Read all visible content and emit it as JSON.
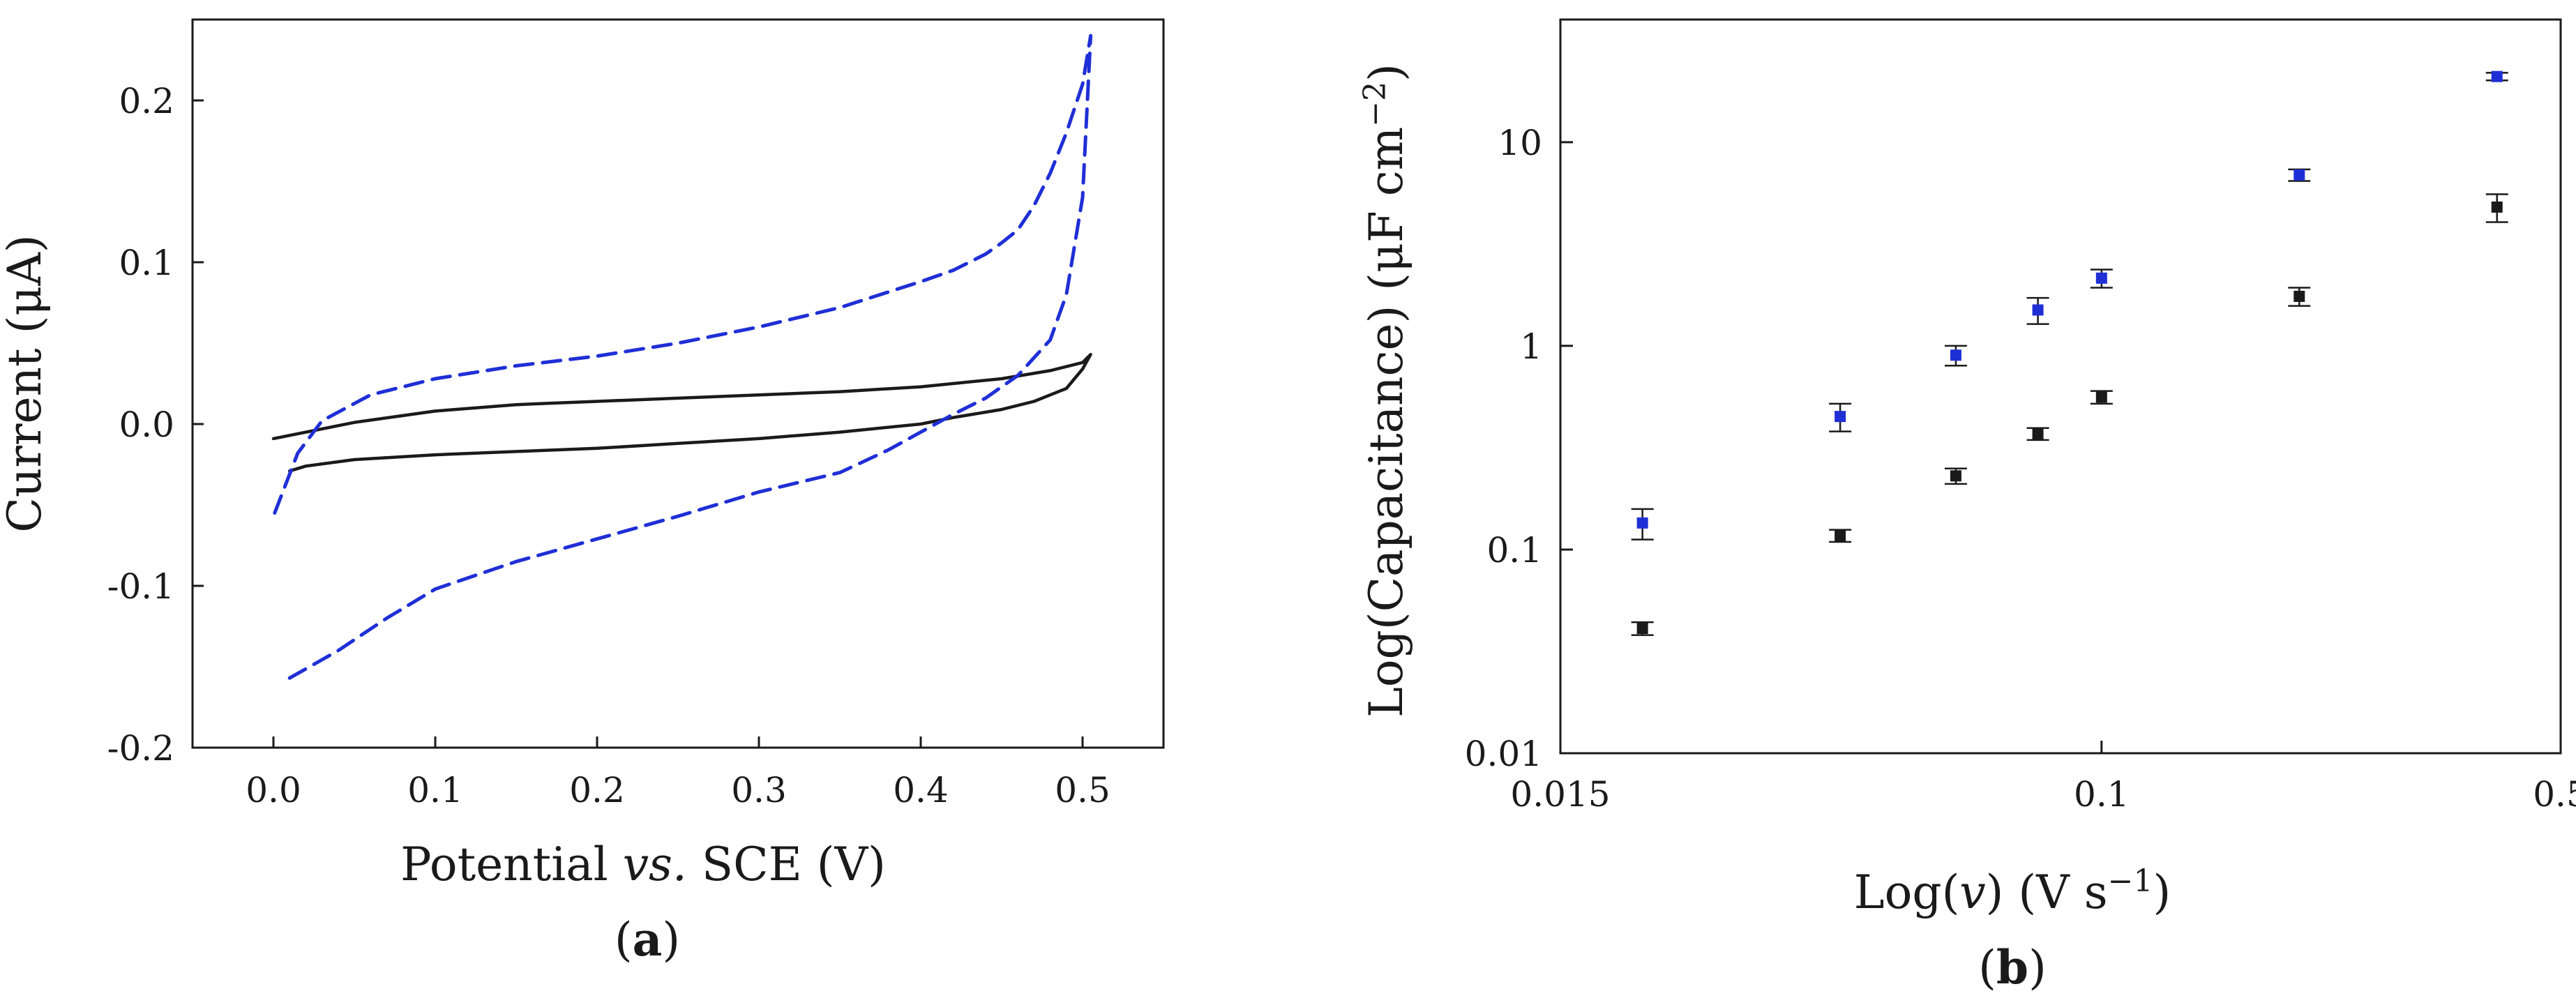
{
  "chart_data": [
    {
      "panel": "a",
      "type": "line",
      "caption": "a",
      "xlabel_prefix": "Potential ",
      "xlabel_italic": "vs.",
      "xlabel_suffix": " SCE (V)",
      "ylabel": "Current (μA)",
      "xlim": [
        -0.05,
        0.55
      ],
      "ylim": [
        -0.2,
        0.25
      ],
      "xticks": [
        0.0,
        0.1,
        0.2,
        0.3,
        0.4,
        0.5
      ],
      "xtick_labels": [
        "0.0",
        "0.1",
        "0.2",
        "0.3",
        "0.4",
        "0.5"
      ],
      "yticks": [
        -0.2,
        -0.1,
        0.0,
        0.1,
        0.2
      ],
      "ytick_labels": [
        "-0.2",
        "-0.1",
        "0.0",
        "0.1",
        "0.2"
      ],
      "series": [
        {
          "name": "solid-black",
          "color": "#1a1a1a",
          "dash": "solid",
          "x": [
            0.0,
            0.05,
            0.1,
            0.15,
            0.2,
            0.25,
            0.3,
            0.35,
            0.4,
            0.45,
            0.48,
            0.5,
            0.505,
            0.5,
            0.49,
            0.47,
            0.45,
            0.42,
            0.4,
            0.35,
            0.3,
            0.25,
            0.2,
            0.15,
            0.1,
            0.05,
            0.02,
            0.01
          ],
          "y": [
            -0.009,
            0.001,
            0.008,
            0.012,
            0.014,
            0.016,
            0.018,
            0.02,
            0.023,
            0.028,
            0.033,
            0.038,
            0.043,
            0.034,
            0.022,
            0.014,
            0.009,
            0.004,
            0.0,
            -0.005,
            -0.009,
            -0.012,
            -0.015,
            -0.017,
            -0.019,
            -0.022,
            -0.026,
            -0.029
          ]
        },
        {
          "name": "dashed-blue",
          "color": "#1f2fd6",
          "dash": "dashed",
          "x": [
            0.01,
            0.04,
            0.07,
            0.1,
            0.15,
            0.2,
            0.25,
            0.3,
            0.35,
            0.38,
            0.4,
            0.42,
            0.44,
            0.46,
            0.48,
            0.49,
            0.5,
            0.505,
            0.5,
            0.49,
            0.48,
            0.47,
            0.46,
            0.45,
            0.44,
            0.43,
            0.42,
            0.4,
            0.35,
            0.3,
            0.25,
            0.2,
            0.15,
            0.1,
            0.06,
            0.03,
            0.015,
            0.0
          ],
          "y": [
            -0.157,
            -0.14,
            -0.12,
            -0.102,
            -0.085,
            -0.071,
            -0.057,
            -0.042,
            -0.03,
            -0.016,
            -0.005,
            0.006,
            0.016,
            0.03,
            0.052,
            0.08,
            0.14,
            0.24,
            0.21,
            0.18,
            0.155,
            0.135,
            0.12,
            0.112,
            0.105,
            0.1,
            0.095,
            0.088,
            0.072,
            0.06,
            0.05,
            0.042,
            0.036,
            0.028,
            0.018,
            0.002,
            -0.018,
            -0.057
          ]
        }
      ]
    },
    {
      "panel": "b",
      "type": "scatter",
      "caption": "b",
      "xlabel_prefix": "Log(",
      "xlabel_italic": "v",
      "xlabel_suffix": ") (V s",
      "xlabel_sup": "−1",
      "xlabel_end": ")",
      "ylabel_main": "Log(Capacitance) (μF cm",
      "ylabel_sup": "−2",
      "ylabel_end": ")",
      "x_scale": "log",
      "y_scale": "log",
      "xlim": [
        0.015,
        0.5
      ],
      "ylim": [
        0.01,
        40
      ],
      "xticks": [
        0.015,
        0.1,
        0.5
      ],
      "xtick_labels": [
        "0.015",
        "0.1",
        "0.5"
      ],
      "yticks": [
        0.01,
        0.1,
        1,
        10
      ],
      "ytick_labels": [
        "0.01",
        "0.1",
        "1",
        "10"
      ],
      "series": [
        {
          "name": "blue",
          "color": "#1f2fd6",
          "x": [
            0.02,
            0.04,
            0.06,
            0.08,
            0.1,
            0.2,
            0.4
          ],
          "y": [
            0.135,
            0.45,
            0.9,
            1.5,
            2.15,
            6.9,
            21.0
          ],
          "err": [
            0.023,
            0.07,
            0.1,
            0.22,
            0.22,
            0.45,
            0.9
          ]
        },
        {
          "name": "black",
          "color": "#1a1a1a",
          "x": [
            0.02,
            0.04,
            0.06,
            0.08,
            0.1,
            0.2,
            0.4
          ],
          "y": [
            0.041,
            0.117,
            0.23,
            0.37,
            0.56,
            1.75,
            4.8
          ],
          "err": [
            0.003,
            0.008,
            0.02,
            0.025,
            0.04,
            0.18,
            0.75
          ]
        }
      ]
    }
  ]
}
